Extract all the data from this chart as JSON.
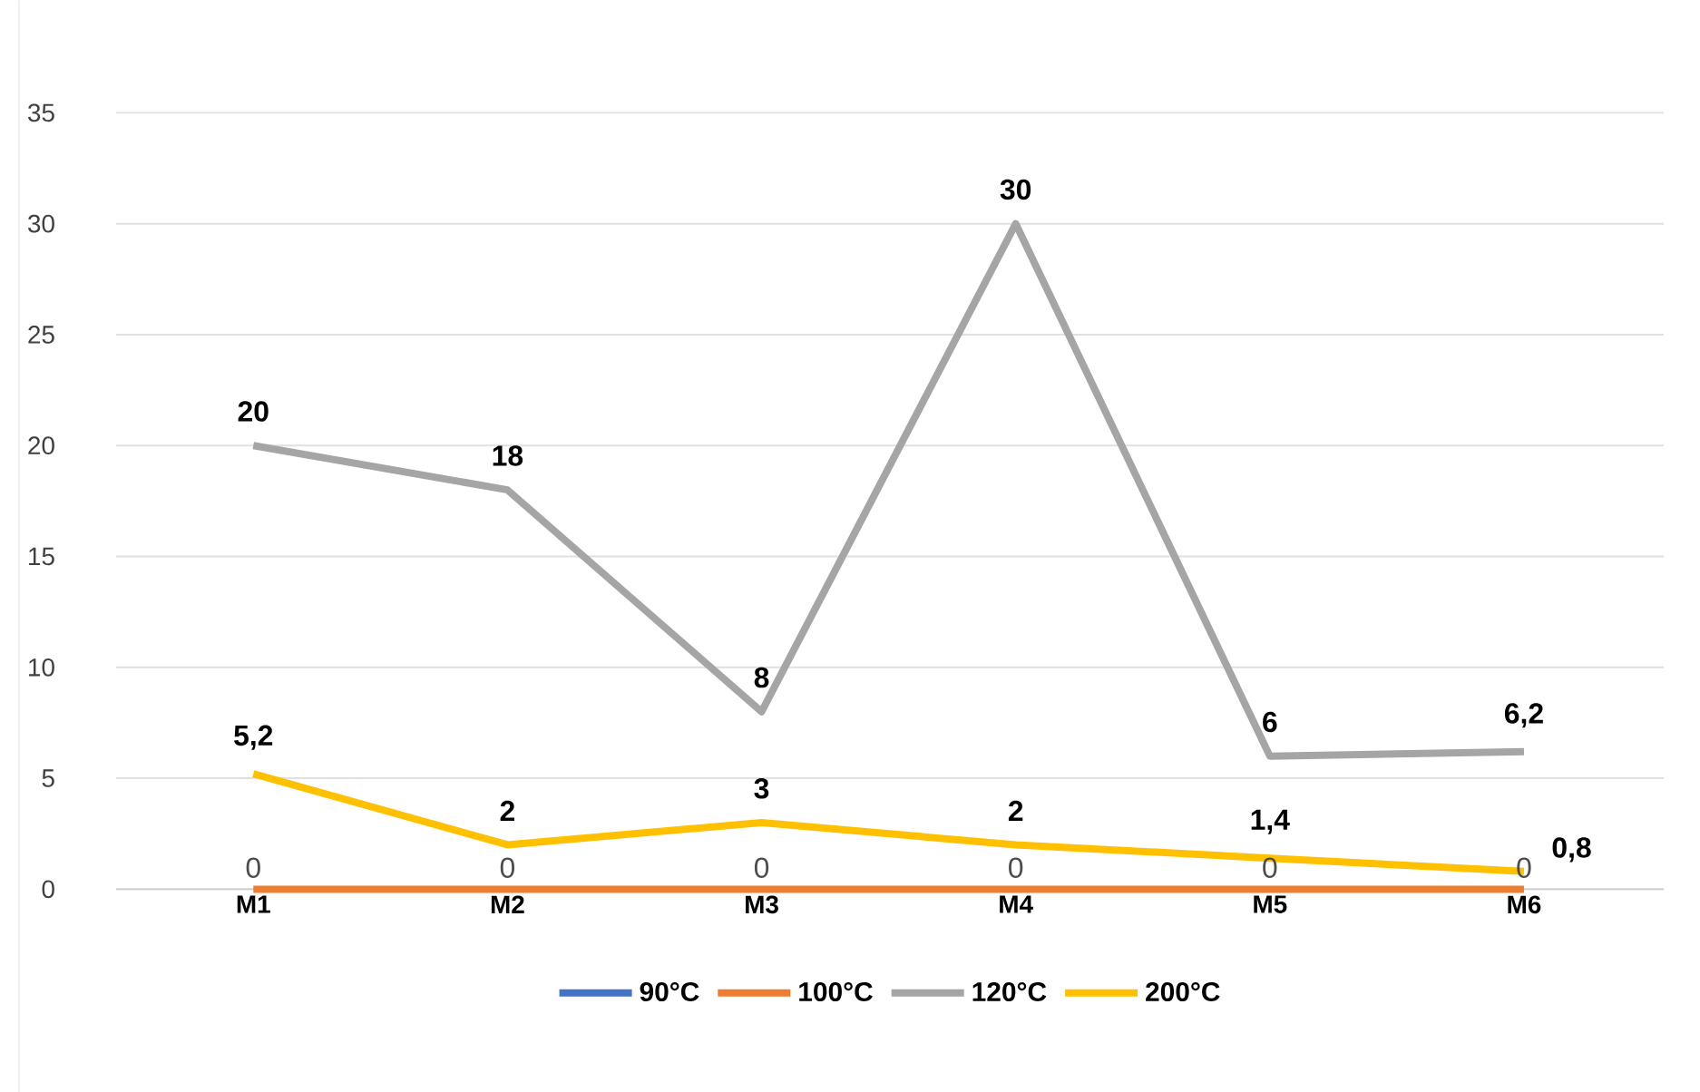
{
  "chart_data": {
    "type": "line",
    "categories": [
      "M1",
      "M2",
      "M3",
      "M4",
      "M5",
      "M6"
    ],
    "ylim": [
      0,
      35
    ],
    "yticks": [
      0,
      5,
      10,
      15,
      20,
      25,
      30,
      35
    ],
    "grid": "y",
    "legend": "bottom",
    "series": [
      {
        "name": "90°C",
        "color": "#4472c4",
        "values": [
          null,
          null,
          null,
          null,
          null,
          null
        ]
      },
      {
        "name": "100°C",
        "color": "#ed7d31",
        "values": [
          0,
          0,
          0,
          0,
          0,
          0
        ],
        "value_labels": [
          "0",
          "0",
          "0",
          "0",
          "0",
          "0"
        ]
      },
      {
        "name": "120°C",
        "color": "#a5a5a5",
        "values": [
          20,
          18,
          8,
          30,
          6,
          6.2
        ],
        "value_labels": [
          "**20**",
          "**18**",
          "**8**",
          "**30**",
          "**6**",
          "**6,2**"
        ]
      },
      {
        "name": "200°C",
        "color": "#ffc000",
        "values": [
          5.2,
          2,
          3,
          2,
          1.4,
          0.8
        ],
        "value_labels": [
          "**5,2**",
          "**2**",
          "**3**",
          "**2**",
          "**1,4**",
          "**0,8**"
        ]
      }
    ]
  }
}
